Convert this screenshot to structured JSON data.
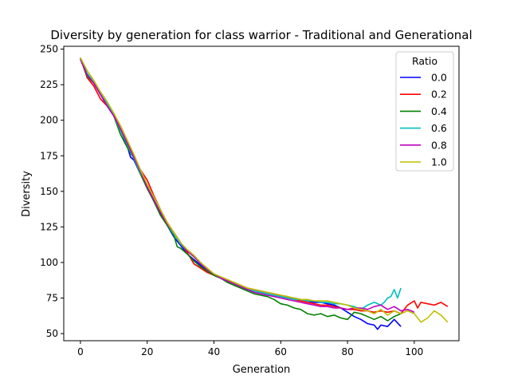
{
  "chart_data": {
    "type": "line",
    "title": "Diversity by generation for class warrior - Traditional and Generational",
    "xlabel": "Generation",
    "ylabel": "Diversity",
    "xlim": [
      -5,
      113.4
    ],
    "ylim": [
      45,
      252
    ],
    "xticks": [
      0,
      20,
      40,
      60,
      80,
      100
    ],
    "yticks": [
      50,
      75,
      100,
      125,
      150,
      175,
      200,
      225,
      250
    ],
    "grid": false,
    "legend": {
      "title": "Ratio",
      "placement": "top-right"
    },
    "series": [
      {
        "name": "0.0",
        "color": "#0000ff",
        "points": [
          [
            0,
            243
          ],
          [
            2,
            232
          ],
          [
            4,
            226
          ],
          [
            6,
            218
          ],
          [
            8,
            210
          ],
          [
            10,
            203
          ],
          [
            12,
            193
          ],
          [
            14,
            182
          ],
          [
            15,
            174
          ],
          [
            16,
            172
          ],
          [
            18,
            162
          ],
          [
            20,
            153
          ],
          [
            22,
            143
          ],
          [
            24,
            134
          ],
          [
            26,
            126
          ],
          [
            28,
            118
          ],
          [
            30,
            112
          ],
          [
            32,
            106
          ],
          [
            34,
            102
          ],
          [
            36,
            98
          ],
          [
            38,
            94
          ],
          [
            40,
            91
          ],
          [
            42,
            89
          ],
          [
            44,
            87
          ],
          [
            46,
            85
          ],
          [
            48,
            83
          ],
          [
            50,
            81
          ],
          [
            52,
            80
          ],
          [
            54,
            79
          ],
          [
            56,
            78
          ],
          [
            58,
            77
          ],
          [
            60,
            76
          ],
          [
            62,
            75
          ],
          [
            64,
            75
          ],
          [
            66,
            74
          ],
          [
            68,
            73
          ],
          [
            70,
            72
          ],
          [
            72,
            72
          ],
          [
            74,
            71
          ],
          [
            76,
            70
          ],
          [
            78,
            68
          ],
          [
            80,
            65
          ],
          [
            82,
            62
          ],
          [
            84,
            60
          ],
          [
            86,
            57
          ],
          [
            88,
            56
          ],
          [
            89,
            53
          ],
          [
            90,
            56
          ],
          [
            92,
            55
          ],
          [
            94,
            60
          ],
          [
            96,
            55
          ]
        ]
      },
      {
        "name": "0.2",
        "color": "#ff0000",
        "points": [
          [
            0,
            244
          ],
          [
            2,
            230
          ],
          [
            4,
            224
          ],
          [
            6,
            215
          ],
          [
            8,
            210
          ],
          [
            10,
            204
          ],
          [
            12,
            196
          ],
          [
            14,
            186
          ],
          [
            16,
            175
          ],
          [
            18,
            165
          ],
          [
            20,
            158
          ],
          [
            22,
            147
          ],
          [
            24,
            137
          ],
          [
            26,
            128
          ],
          [
            28,
            121
          ],
          [
            30,
            114
          ],
          [
            32,
            107
          ],
          [
            34,
            99
          ],
          [
            36,
            96
          ],
          [
            38,
            93
          ],
          [
            40,
            91
          ],
          [
            42,
            89
          ],
          [
            44,
            87
          ],
          [
            46,
            86
          ],
          [
            48,
            84
          ],
          [
            50,
            82
          ],
          [
            52,
            81
          ],
          [
            54,
            80
          ],
          [
            56,
            79
          ],
          [
            58,
            78
          ],
          [
            60,
            77
          ],
          [
            62,
            76
          ],
          [
            64,
            74
          ],
          [
            66,
            73
          ],
          [
            68,
            72
          ],
          [
            70,
            71
          ],
          [
            72,
            70
          ],
          [
            74,
            70
          ],
          [
            76,
            69
          ],
          [
            78,
            68
          ],
          [
            80,
            67
          ],
          [
            82,
            67
          ],
          [
            84,
            66
          ],
          [
            86,
            66
          ],
          [
            88,
            65
          ],
          [
            90,
            66
          ],
          [
            92,
            65
          ],
          [
            94,
            66
          ],
          [
            96,
            64
          ],
          [
            98,
            70
          ],
          [
            100,
            73
          ],
          [
            101,
            68
          ],
          [
            102,
            72
          ],
          [
            104,
            71
          ],
          [
            106,
            70
          ],
          [
            108,
            72
          ],
          [
            110,
            69
          ]
        ]
      },
      {
        "name": "0.4",
        "color": "#008000",
        "points": [
          [
            0,
            243
          ],
          [
            2,
            231
          ],
          [
            4,
            226
          ],
          [
            6,
            219
          ],
          [
            8,
            212
          ],
          [
            10,
            203
          ],
          [
            12,
            190
          ],
          [
            14,
            181
          ],
          [
            16,
            173
          ],
          [
            18,
            162
          ],
          [
            20,
            152
          ],
          [
            22,
            143
          ],
          [
            24,
            133
          ],
          [
            26,
            126
          ],
          [
            28,
            119
          ],
          [
            29,
            111
          ],
          [
            30,
            110
          ],
          [
            32,
            106
          ],
          [
            34,
            101
          ],
          [
            36,
            97
          ],
          [
            38,
            94
          ],
          [
            40,
            91
          ],
          [
            42,
            89
          ],
          [
            44,
            86
          ],
          [
            46,
            84
          ],
          [
            48,
            82
          ],
          [
            50,
            80
          ],
          [
            52,
            78
          ],
          [
            54,
            77
          ],
          [
            56,
            76
          ],
          [
            58,
            74
          ],
          [
            60,
            71
          ],
          [
            62,
            70
          ],
          [
            64,
            68
          ],
          [
            66,
            67
          ],
          [
            68,
            64
          ],
          [
            70,
            63
          ],
          [
            72,
            64
          ],
          [
            74,
            62
          ],
          [
            76,
            63
          ],
          [
            78,
            61
          ],
          [
            80,
            60
          ],
          [
            82,
            65
          ],
          [
            84,
            64
          ],
          [
            86,
            62
          ],
          [
            88,
            60
          ],
          [
            90,
            62
          ],
          [
            92,
            59
          ],
          [
            94,
            62
          ],
          [
            96,
            64
          ]
        ]
      },
      {
        "name": "0.6",
        "color": "#00bfbf",
        "points": [
          [
            0,
            244
          ],
          [
            2,
            233
          ],
          [
            4,
            227
          ],
          [
            6,
            219
          ],
          [
            8,
            212
          ],
          [
            10,
            203
          ],
          [
            12,
            193
          ],
          [
            14,
            183
          ],
          [
            16,
            173
          ],
          [
            18,
            163
          ],
          [
            20,
            154
          ],
          [
            22,
            145
          ],
          [
            24,
            136
          ],
          [
            26,
            127
          ],
          [
            28,
            120
          ],
          [
            30,
            113
          ],
          [
            32,
            108
          ],
          [
            34,
            104
          ],
          [
            36,
            100
          ],
          [
            38,
            95
          ],
          [
            40,
            92
          ],
          [
            42,
            89
          ],
          [
            44,
            87
          ],
          [
            46,
            85
          ],
          [
            48,
            83
          ],
          [
            50,
            81
          ],
          [
            52,
            80
          ],
          [
            54,
            79
          ],
          [
            56,
            78
          ],
          [
            58,
            77
          ],
          [
            60,
            76
          ],
          [
            62,
            75
          ],
          [
            64,
            74
          ],
          [
            66,
            74
          ],
          [
            68,
            73
          ],
          [
            70,
            73
          ],
          [
            72,
            72
          ],
          [
            74,
            72
          ],
          [
            76,
            71
          ],
          [
            78,
            71
          ],
          [
            80,
            70
          ],
          [
            82,
            69
          ],
          [
            84,
            67
          ],
          [
            86,
            70
          ],
          [
            88,
            72
          ],
          [
            90,
            70
          ],
          [
            91,
            72
          ],
          [
            92,
            75
          ],
          [
            93,
            76
          ],
          [
            94,
            81
          ],
          [
            95,
            75
          ],
          [
            96,
            82
          ]
        ]
      },
      {
        "name": "0.8",
        "color": "#bf00bf",
        "points": [
          [
            0,
            243
          ],
          [
            2,
            232
          ],
          [
            4,
            226
          ],
          [
            6,
            218
          ],
          [
            8,
            210
          ],
          [
            10,
            203
          ],
          [
            12,
            194
          ],
          [
            14,
            184
          ],
          [
            16,
            174
          ],
          [
            18,
            164
          ],
          [
            20,
            153
          ],
          [
            22,
            144
          ],
          [
            24,
            135
          ],
          [
            26,
            127
          ],
          [
            28,
            121
          ],
          [
            30,
            114
          ],
          [
            32,
            108
          ],
          [
            34,
            104
          ],
          [
            36,
            99
          ],
          [
            38,
            95
          ],
          [
            40,
            92
          ],
          [
            42,
            89
          ],
          [
            44,
            87
          ],
          [
            46,
            85
          ],
          [
            48,
            83
          ],
          [
            50,
            81
          ],
          [
            52,
            79
          ],
          [
            54,
            78
          ],
          [
            56,
            77
          ],
          [
            58,
            76
          ],
          [
            60,
            75
          ],
          [
            62,
            74
          ],
          [
            64,
            73
          ],
          [
            66,
            72
          ],
          [
            68,
            71
          ],
          [
            70,
            70
          ],
          [
            72,
            69
          ],
          [
            74,
            69
          ],
          [
            76,
            68
          ],
          [
            78,
            68
          ],
          [
            80,
            67
          ],
          [
            82,
            68
          ],
          [
            84,
            68
          ],
          [
            86,
            67
          ],
          [
            88,
            69
          ],
          [
            90,
            70
          ],
          [
            92,
            67
          ],
          [
            94,
            69
          ],
          [
            96,
            66
          ],
          [
            98,
            67
          ],
          [
            100,
            65
          ]
        ]
      },
      {
        "name": "1.0",
        "color": "#bfbf00",
        "points": [
          [
            0,
            244
          ],
          [
            2,
            235
          ],
          [
            4,
            228
          ],
          [
            6,
            220
          ],
          [
            8,
            213
          ],
          [
            10,
            205
          ],
          [
            12,
            196
          ],
          [
            14,
            186
          ],
          [
            16,
            176
          ],
          [
            18,
            165
          ],
          [
            20,
            155
          ],
          [
            22,
            146
          ],
          [
            24,
            137
          ],
          [
            26,
            128
          ],
          [
            28,
            121
          ],
          [
            30,
            114
          ],
          [
            32,
            109
          ],
          [
            34,
            105
          ],
          [
            36,
            100
          ],
          [
            38,
            96
          ],
          [
            40,
            92
          ],
          [
            42,
            90
          ],
          [
            44,
            88
          ],
          [
            46,
            86
          ],
          [
            48,
            84
          ],
          [
            50,
            82
          ],
          [
            52,
            81
          ],
          [
            54,
            80
          ],
          [
            56,
            79
          ],
          [
            58,
            78
          ],
          [
            60,
            77
          ],
          [
            62,
            76
          ],
          [
            64,
            75
          ],
          [
            66,
            74
          ],
          [
            68,
            74
          ],
          [
            70,
            73
          ],
          [
            72,
            73
          ],
          [
            74,
            73
          ],
          [
            76,
            72
          ],
          [
            78,
            71
          ],
          [
            80,
            70
          ],
          [
            82,
            68
          ],
          [
            84,
            67
          ],
          [
            86,
            66
          ],
          [
            88,
            64
          ],
          [
            90,
            67
          ],
          [
            92,
            63
          ],
          [
            94,
            66
          ],
          [
            96,
            64
          ],
          [
            98,
            66
          ],
          [
            100,
            64
          ],
          [
            102,
            58
          ],
          [
            104,
            61
          ],
          [
            106,
            66
          ],
          [
            108,
            63
          ],
          [
            110,
            58
          ]
        ]
      }
    ]
  }
}
